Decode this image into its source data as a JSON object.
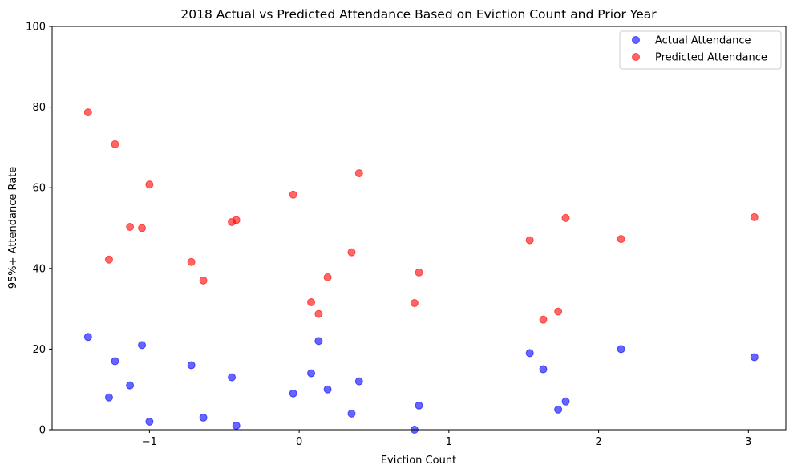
{
  "chart_data": {
    "type": "scatter",
    "title": "2018 Actual vs Predicted Attendance Based on Eviction Count and Prior Year",
    "xlabel": "Eviction Count",
    "ylabel": "95%+ Attendance Rate",
    "xlim": [
      -1.65,
      3.25
    ],
    "ylim": [
      0,
      100
    ],
    "x_ticks": [
      -1,
      0,
      1,
      2,
      3
    ],
    "x_tick_labels": [
      "−1",
      "0",
      "1",
      "2",
      "3"
    ],
    "y_ticks": [
      0,
      20,
      40,
      60,
      80,
      100
    ],
    "y_tick_labels": [
      "0",
      "20",
      "40",
      "60",
      "80",
      "100"
    ],
    "grid": false,
    "legend_position": "top-right",
    "series": [
      {
        "name": "Actual Attendance",
        "color": "#0000ff",
        "points": [
          [
            -1.41,
            23
          ],
          [
            -1.27,
            8
          ],
          [
            -1.23,
            17
          ],
          [
            -1.13,
            11
          ],
          [
            -1.05,
            21
          ],
          [
            -1.0,
            2
          ],
          [
            -0.72,
            16
          ],
          [
            -0.64,
            3
          ],
          [
            -0.45,
            13
          ],
          [
            -0.42,
            1
          ],
          [
            -0.04,
            9
          ],
          [
            0.08,
            14
          ],
          [
            0.13,
            22
          ],
          [
            0.19,
            10
          ],
          [
            0.35,
            4
          ],
          [
            0.4,
            12
          ],
          [
            0.77,
            0
          ],
          [
            0.8,
            6
          ],
          [
            1.54,
            19
          ],
          [
            1.63,
            15
          ],
          [
            1.73,
            5
          ],
          [
            1.78,
            7
          ],
          [
            2.15,
            20
          ],
          [
            3.04,
            18
          ]
        ]
      },
      {
        "name": "Predicted Attendance",
        "color": "#ff0000",
        "points": [
          [
            -1.41,
            78.7
          ],
          [
            -1.27,
            42.2
          ],
          [
            -1.23,
            70.8
          ],
          [
            -1.13,
            50.3
          ],
          [
            -1.05,
            50.0
          ],
          [
            -1.0,
            60.8
          ],
          [
            -0.72,
            41.6
          ],
          [
            -0.64,
            37.0
          ],
          [
            -0.45,
            51.5
          ],
          [
            -0.42,
            52.0
          ],
          [
            -0.04,
            58.3
          ],
          [
            0.08,
            31.6
          ],
          [
            0.13,
            28.7
          ],
          [
            0.19,
            37.8
          ],
          [
            0.35,
            44.0
          ],
          [
            0.4,
            63.6
          ],
          [
            0.77,
            31.4
          ],
          [
            0.8,
            39.0
          ],
          [
            1.54,
            47.0
          ],
          [
            1.63,
            27.3
          ],
          [
            1.73,
            29.3
          ],
          [
            1.78,
            52.5
          ],
          [
            2.15,
            47.3
          ],
          [
            3.04,
            52.7
          ]
        ]
      }
    ]
  }
}
